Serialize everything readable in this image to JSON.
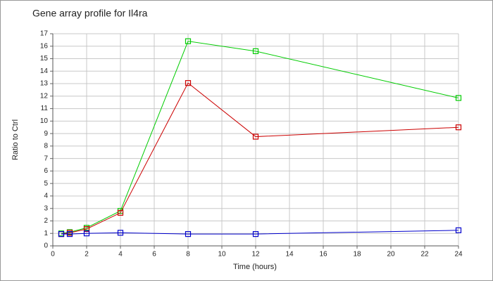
{
  "chart_data": {
    "type": "line",
    "title": "Gene array profile for Il4ra",
    "x_label": "Time (hours)",
    "y_label": "Ratio to Ctrl",
    "x": [
      0.5,
      1,
      2,
      4,
      8,
      12,
      24
    ],
    "series": [
      {
        "color": "#00cc00",
        "values": [
          1.0,
          1.1,
          1.45,
          2.8,
          16.4,
          15.6,
          11.85
        ]
      },
      {
        "color": "#cc0000",
        "values": [
          0.95,
          1.05,
          1.35,
          2.65,
          13.05,
          8.75,
          9.5
        ]
      },
      {
        "color": "#0000cc",
        "values": [
          0.95,
          0.95,
          1.0,
          1.05,
          0.95,
          0.95,
          1.25
        ]
      }
    ],
    "xlim": [
      0,
      24
    ],
    "xticks": [
      0,
      2,
      4,
      6,
      8,
      10,
      12,
      14,
      16,
      18,
      20,
      22,
      24
    ],
    "ylim": [
      0,
      17
    ],
    "yticks": [
      0,
      1,
      2,
      3,
      4,
      5,
      6,
      7,
      8,
      9,
      10,
      11,
      12,
      13,
      14,
      15,
      16,
      17
    ],
    "grid": true
  }
}
